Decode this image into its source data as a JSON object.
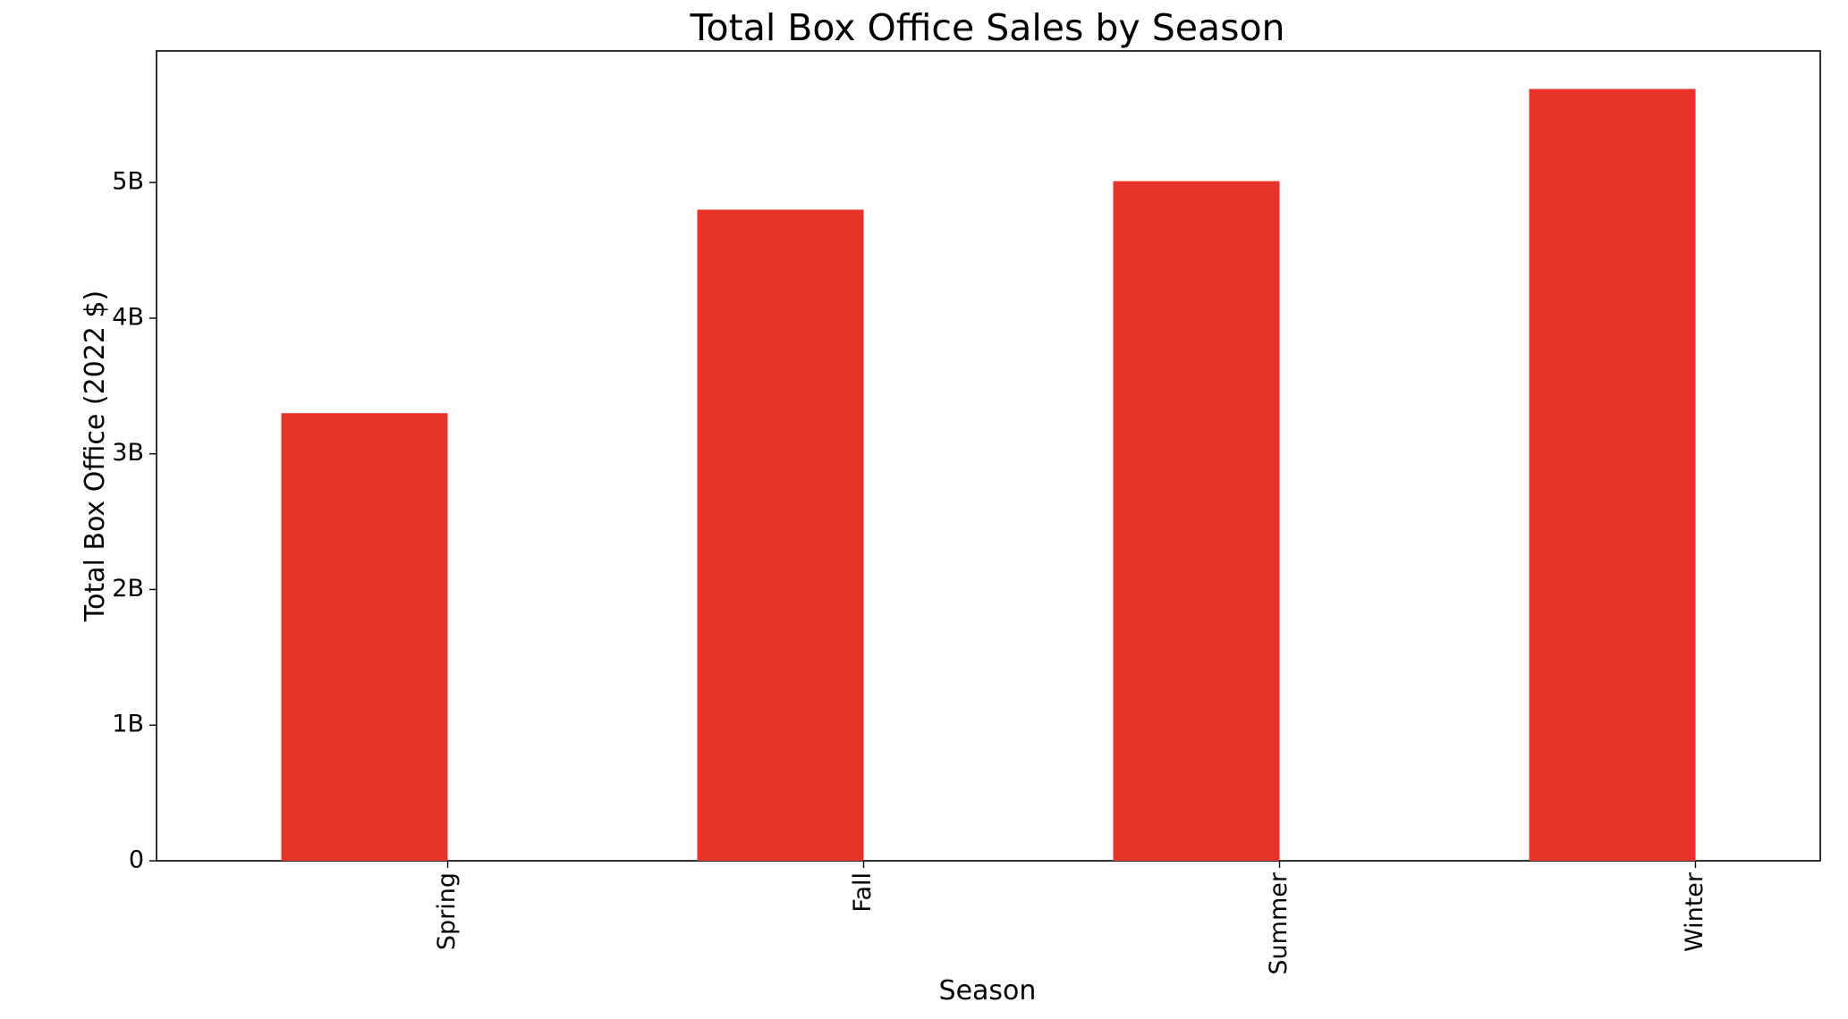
{
  "chart_data": {
    "type": "bar",
    "title": "Total Box Office Sales by Season",
    "xlabel": "Season",
    "ylabel": "Total Box Office (2022 $)",
    "categories": [
      "Spring",
      "Fall",
      "Summer",
      "Winter"
    ],
    "values": [
      3300000000,
      4800000000,
      5010000000,
      5690000000
    ],
    "ylim": [
      0,
      5970000000
    ],
    "yticks": [
      {
        "value": 0,
        "label": "0"
      },
      {
        "value": 1000000000,
        "label": "1B"
      },
      {
        "value": 2000000000,
        "label": "2B"
      },
      {
        "value": 3000000000,
        "label": "3B"
      },
      {
        "value": 4000000000,
        "label": "4B"
      },
      {
        "value": 5000000000,
        "label": "5B"
      }
    ],
    "bar_color": "#e8332a",
    "grid": false,
    "legend": "none",
    "xtick_rotation": "vertical"
  }
}
